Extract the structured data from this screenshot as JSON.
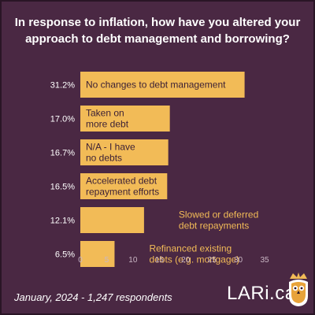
{
  "title": "In response to inflation, how have you altered your approach to debt management and borrowing?",
  "footer": "January, 2024 - 1,247 respondents",
  "brand": {
    "logo_text": "LARi.ca",
    "owl": "owl-logo-icon"
  },
  "colors": {
    "background": "#4a2843",
    "bar": "#f2bb57",
    "text_inside": "#3a1f35",
    "text_outside": "#f2bb57",
    "axis": "#c9b6c4",
    "footer": "#ffffff"
  },
  "chart_data": {
    "type": "bar",
    "orientation": "horizontal",
    "categories": [
      [
        "No changes to debt management"
      ],
      [
        "Taken on",
        "more debt"
      ],
      [
        "N/A - I have",
        "no debts"
      ],
      [
        "Accelerated debt",
        "repayment efforts"
      ],
      [
        "Slowed or deferred",
        "debt repayments"
      ],
      [
        "Refinanced existing",
        "debts (e.g. mortgage)"
      ]
    ],
    "values": [
      31.2,
      17.0,
      16.7,
      16.5,
      12.1,
      6.5
    ],
    "value_labels": [
      "31.2%",
      "17.0%",
      "16.7%",
      "16.5%",
      "12.1%",
      "6.5%"
    ],
    "label_inside": [
      true,
      true,
      true,
      true,
      false,
      false
    ],
    "xlim": [
      0,
      35
    ],
    "xticks": [
      "0",
      "5",
      "10",
      "15",
      "20",
      "25",
      "30",
      "35"
    ],
    "grid": false,
    "legend": "none"
  }
}
